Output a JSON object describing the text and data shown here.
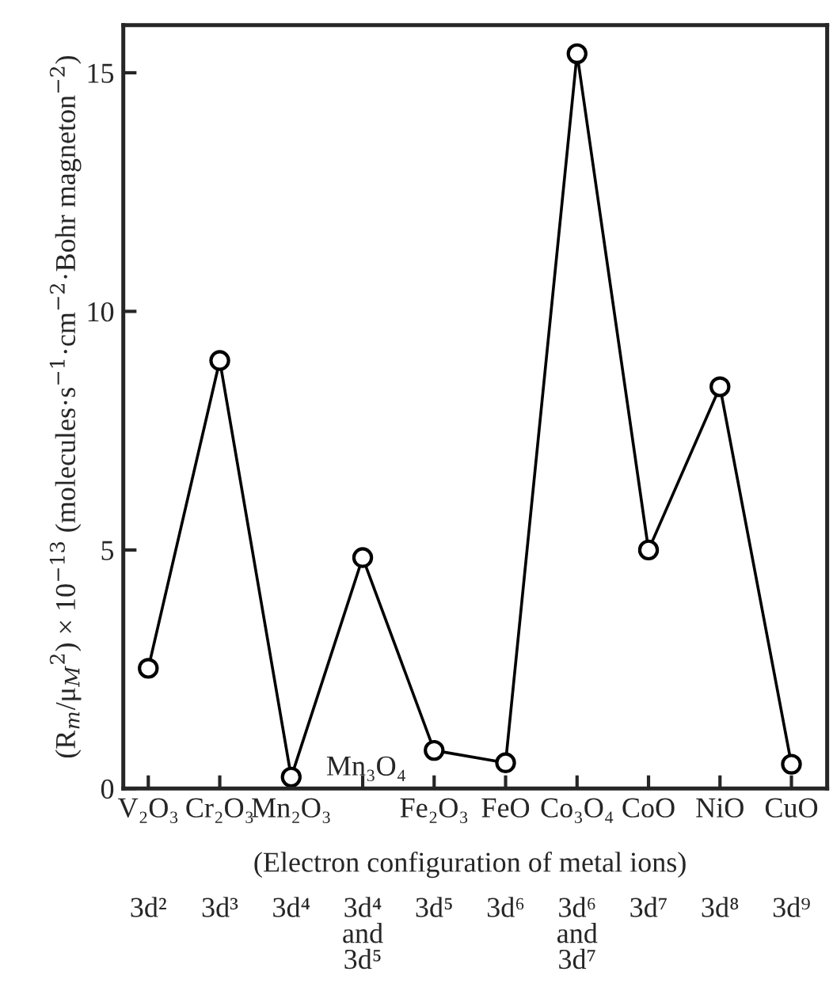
{
  "chart_data": {
    "type": "line",
    "categories": [
      "V₂O₃",
      "Cr₂O₃",
      "Mn₂O₃",
      null,
      "Fe₂O₃",
      "FeO",
      "Co₃O₄",
      "CoO",
      "NiO",
      "CuO"
    ],
    "series": [
      {
        "color": "#000000",
        "values": [
          2.52,
          8.97,
          0.24,
          4.84,
          0.8,
          0.54,
          15.4,
          5.0,
          8.42,
          0.51
        ]
      }
    ],
    "xlabel": "(Electron configuration of metal ions)",
    "ylabel": "(R$_{m}$/μ$_{M}$$^{2}$) × 10$^{−13}$ (molecules·s$^{−1}$·cm$^{−2}$·Bohr magneton$^{−2}$)",
    "ylim": [
      0,
      16
    ],
    "yticks": [
      0,
      5,
      10,
      15
    ],
    "marker": "circle",
    "line_style": "solid",
    "grid": false,
    "annotations": [
      "Mn₃O₄",
      "3d²",
      "3d³",
      "3d⁴",
      "3d⁴\nand\n3d⁵",
      "3d⁵",
      "3d⁶",
      "3d⁶\nand\n3d⁷",
      "3d⁷",
      "3d⁸",
      "3d⁹"
    ]
  }
}
